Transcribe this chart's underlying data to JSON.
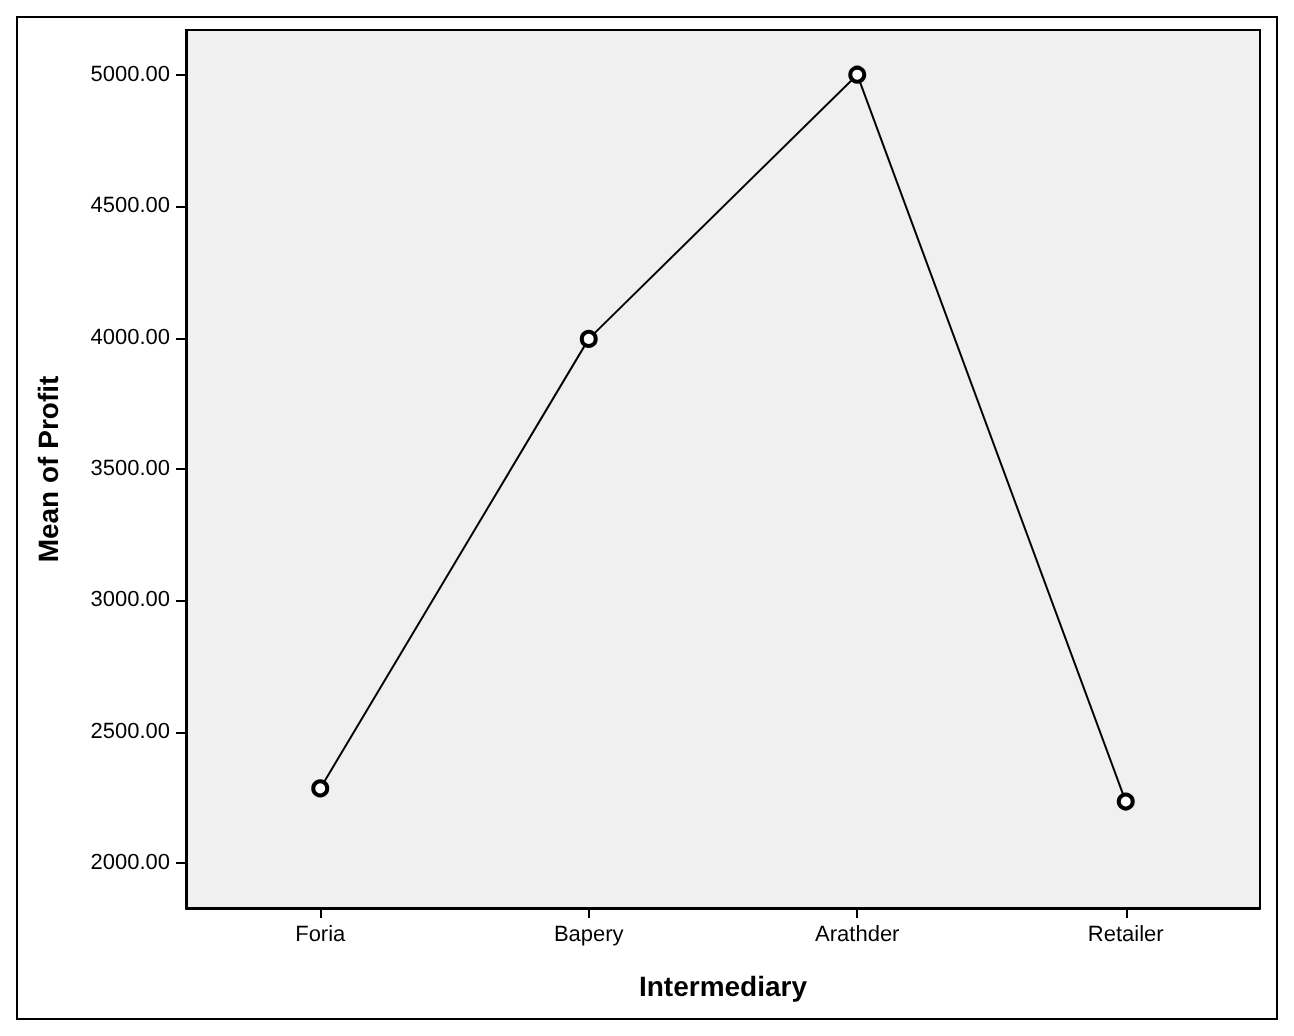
{
  "chart_data": {
    "type": "line",
    "xlabel": "Intermediary",
    "ylabel": "Mean of Profit",
    "categories": [
      "Foria",
      "Bapery",
      "Arathder",
      "Retailer"
    ],
    "series": [
      {
        "color": "#000000",
        "values": [
          2285,
          3995,
          5000,
          2235
        ]
      }
    ],
    "ylim": [
      1830,
      5170
    ],
    "yticks": [
      {
        "value": 2000,
        "label": "2000.00"
      },
      {
        "value": 2500,
        "label": "2500.00"
      },
      {
        "value": 3000,
        "label": "3000.00"
      },
      {
        "value": 3500,
        "label": "3500.00"
      },
      {
        "value": 4000,
        "label": "4000.00"
      },
      {
        "value": 4500,
        "label": "4500.00"
      },
      {
        "value": 5000,
        "label": "5000.00"
      }
    ],
    "grid": false,
    "marker": "circle",
    "line_style": "solid"
  }
}
